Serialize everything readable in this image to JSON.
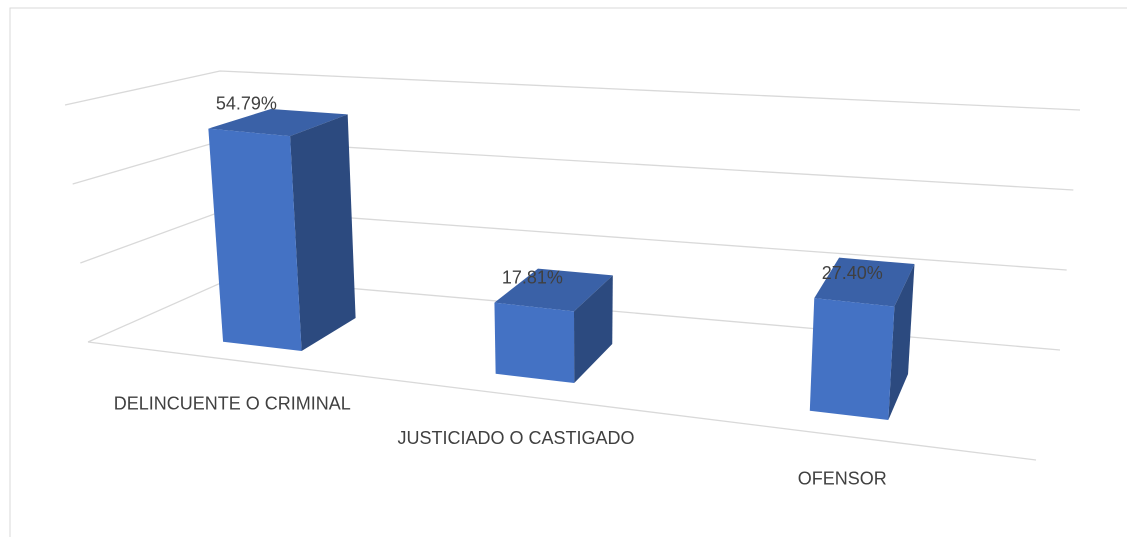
{
  "chart_data": {
    "type": "bar3d",
    "categories": [
      "DELINCUENTE O CRIMINAL",
      "JUSTICIADO O CASTIGADO",
      "OFENSOR"
    ],
    "values": [
      54.79,
      17.81,
      27.4
    ],
    "value_labels": [
      "54.79%",
      "17.81%",
      "27.40%"
    ],
    "color": "#4472c4",
    "ylim": [
      0,
      60
    ],
    "yticks": [
      0,
      20,
      40,
      60
    ],
    "grid": true
  }
}
